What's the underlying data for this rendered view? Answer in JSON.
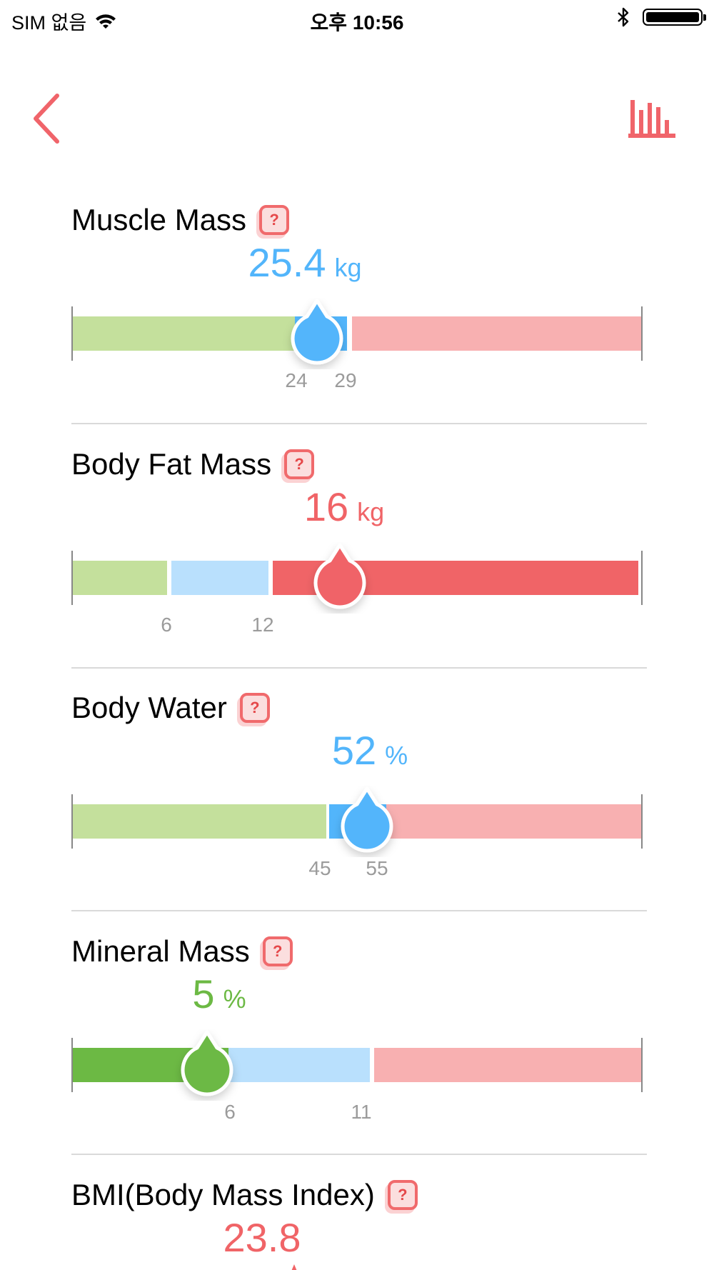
{
  "status_bar": {
    "carrier": "SIM 없음",
    "time": "오후 10:56"
  },
  "colors": {
    "accent": "#f0646a",
    "blue": "#52b5fb",
    "light_blue": "#b9e0fd",
    "green": "#6cb944",
    "light_green": "#c4e09c",
    "red": "#f06467",
    "light_red": "#f8b0b1"
  },
  "header": {
    "back_icon": "chevron-left-icon",
    "chart_icon": "bar-chart-icon"
  },
  "help_label": "?",
  "metrics": [
    {
      "title": "Muscle Mass",
      "value": "25.4",
      "unit": "kg",
      "thresholds": [
        "24",
        "29"
      ]
    },
    {
      "title": "Body Fat Mass",
      "value": "16",
      "unit": "kg",
      "thresholds": [
        "6",
        "12"
      ]
    },
    {
      "title": "Body Water",
      "value": "52",
      "unit": "%",
      "thresholds": [
        "45",
        "55"
      ]
    },
    {
      "title": "Mineral Mass",
      "value": "5",
      "unit": "%",
      "thresholds": [
        "6",
        "11"
      ]
    },
    {
      "title": "BMI(Body Mass Index)",
      "value": "23.8",
      "unit": ""
    }
  ]
}
